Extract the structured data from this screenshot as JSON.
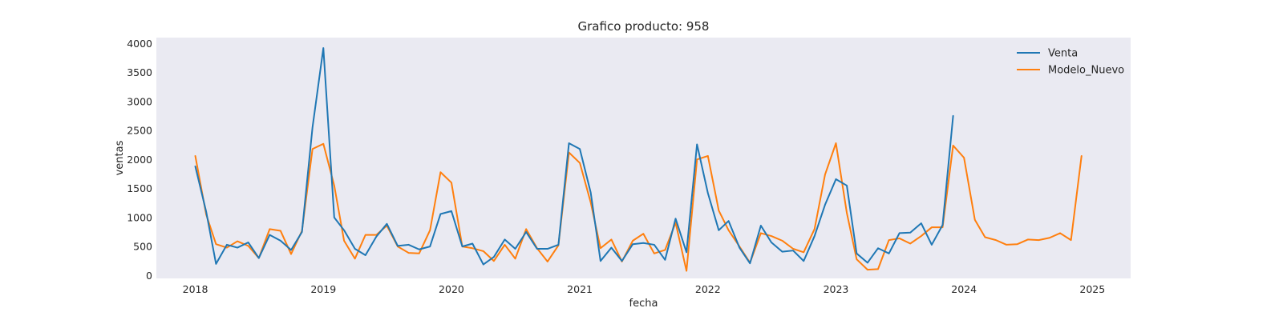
{
  "chart_data": {
    "type": "line",
    "title": "Grafico producto: 958",
    "xlabel": "fecha",
    "ylabel": "ventas",
    "ylim": [
      -50,
      4100
    ],
    "xlim": [
      "2017-09-12",
      "2025-04-20"
    ],
    "yticks": [
      0,
      500,
      1000,
      1500,
      2000,
      2500,
      3000,
      3500,
      4000
    ],
    "xticks": [
      "2018-01-01",
      "2019-01-01",
      "2020-01-01",
      "2021-01-01",
      "2022-01-01",
      "2023-01-01",
      "2024-01-01",
      "2025-01-01"
    ],
    "xtick_labels": [
      "2018",
      "2019",
      "2020",
      "2021",
      "2022",
      "2023",
      "2024",
      "2025"
    ],
    "grid": false,
    "legend_position": "top-right",
    "colors": {
      "plot_background": "#eaeaf2",
      "venta": "#1f77b4",
      "modelo_nuevo": "#ff7f0e"
    },
    "series": [
      {
        "name": "Venta",
        "x": [
          "2018-01-01",
          "2018-02-01",
          "2018-03-01",
          "2018-04-01",
          "2018-05-01",
          "2018-06-01",
          "2018-07-01",
          "2018-08-01",
          "2018-09-01",
          "2018-10-01",
          "2018-11-01",
          "2018-12-01",
          "2019-01-01",
          "2019-02-01",
          "2019-03-01",
          "2019-04-01",
          "2019-05-01",
          "2019-06-01",
          "2019-07-01",
          "2019-08-01",
          "2019-09-01",
          "2019-10-01",
          "2019-11-01",
          "2019-12-01",
          "2020-01-01",
          "2020-02-01",
          "2020-03-01",
          "2020-04-01",
          "2020-05-01",
          "2020-06-01",
          "2020-07-01",
          "2020-08-01",
          "2020-09-01",
          "2020-10-01",
          "2020-11-01",
          "2020-12-01",
          "2021-01-01",
          "2021-02-01",
          "2021-03-01",
          "2021-04-01",
          "2021-05-01",
          "2021-06-01",
          "2021-07-01",
          "2021-08-01",
          "2021-09-01",
          "2021-10-01",
          "2021-11-01",
          "2021-12-01",
          "2022-01-01",
          "2022-02-01",
          "2022-03-01",
          "2022-04-01",
          "2022-05-01",
          "2022-06-01",
          "2022-07-01",
          "2022-08-01",
          "2022-09-01",
          "2022-10-01",
          "2022-11-01",
          "2022-12-01",
          "2023-01-01",
          "2023-02-01",
          "2023-03-01",
          "2023-04-01",
          "2023-05-01",
          "2023-06-01",
          "2023-07-01",
          "2023-08-01",
          "2023-09-01",
          "2023-10-01",
          "2023-11-01",
          "2023-12-01"
        ],
        "y": [
          1880,
          1100,
          200,
          530,
          480,
          570,
          300,
          700,
          600,
          440,
          750,
          2550,
          3920,
          1000,
          780,
          460,
          350,
          670,
          890,
          510,
          530,
          450,
          500,
          1060,
          1110,
          500,
          550,
          190,
          320,
          620,
          460,
          750,
          460,
          460,
          530,
          2280,
          2180,
          1430,
          250,
          480,
          250,
          540,
          560,
          530,
          270,
          980,
          400,
          2260,
          1420,
          780,
          940,
          480,
          210,
          860,
          570,
          410,
          430,
          250,
          680,
          1220,
          1660,
          1550,
          380,
          220,
          470,
          380,
          730,
          740,
          900,
          530,
          870,
          2750
        ]
      },
      {
        "name": "Modelo_Nuevo",
        "x": [
          "2018-01-01",
          "2018-02-01",
          "2018-03-01",
          "2018-04-01",
          "2018-05-01",
          "2018-06-01",
          "2018-07-01",
          "2018-08-01",
          "2018-09-01",
          "2018-10-01",
          "2018-11-01",
          "2018-12-01",
          "2019-01-01",
          "2019-02-01",
          "2019-03-01",
          "2019-04-01",
          "2019-05-01",
          "2019-06-01",
          "2019-07-01",
          "2019-08-01",
          "2019-09-01",
          "2019-10-01",
          "2019-11-01",
          "2019-12-01",
          "2020-01-01",
          "2020-02-01",
          "2020-03-01",
          "2020-04-01",
          "2020-05-01",
          "2020-06-01",
          "2020-07-01",
          "2020-08-01",
          "2020-09-01",
          "2020-10-01",
          "2020-11-01",
          "2020-12-01",
          "2021-01-01",
          "2021-02-01",
          "2021-03-01",
          "2021-04-01",
          "2021-05-01",
          "2021-06-01",
          "2021-07-01",
          "2021-08-01",
          "2021-09-01",
          "2021-10-01",
          "2021-11-01",
          "2021-12-01",
          "2022-01-01",
          "2022-02-01",
          "2022-03-01",
          "2022-04-01",
          "2022-05-01",
          "2022-06-01",
          "2022-07-01",
          "2022-08-01",
          "2022-09-01",
          "2022-10-01",
          "2022-11-01",
          "2022-12-01",
          "2023-01-01",
          "2023-02-01",
          "2023-03-01",
          "2023-04-01",
          "2023-05-01",
          "2023-06-01",
          "2023-07-01",
          "2023-08-01",
          "2023-09-01",
          "2023-10-01",
          "2023-11-01",
          "2023-12-01",
          "2024-01-01",
          "2024-02-01",
          "2024-03-01",
          "2024-04-01",
          "2024-05-01",
          "2024-06-01",
          "2024-07-01",
          "2024-08-01",
          "2024-09-01",
          "2024-10-01",
          "2024-11-01",
          "2024-12-01"
        ],
        "y": [
          2060,
          1050,
          540,
          480,
          590,
          510,
          300,
          800,
          770,
          370,
          770,
          2180,
          2270,
          1550,
          600,
          290,
          700,
          700,
          860,
          500,
          390,
          380,
          780,
          1780,
          1600,
          500,
          470,
          420,
          250,
          530,
          290,
          800,
          470,
          240,
          520,
          2120,
          1940,
          1260,
          470,
          620,
          240,
          600,
          720,
          380,
          440,
          910,
          80,
          2000,
          2060,
          1120,
          780,
          500,
          220,
          730,
          680,
          600,
          460,
          400,
          800,
          1740,
          2280,
          1080,
          280,
          100,
          110,
          610,
          640,
          550,
          680,
          830,
          830,
          2240,
          2030,
          960,
          660,
          610,
          530,
          540,
          620,
          610,
          650,
          730,
          610,
          2060
        ]
      }
    ]
  }
}
